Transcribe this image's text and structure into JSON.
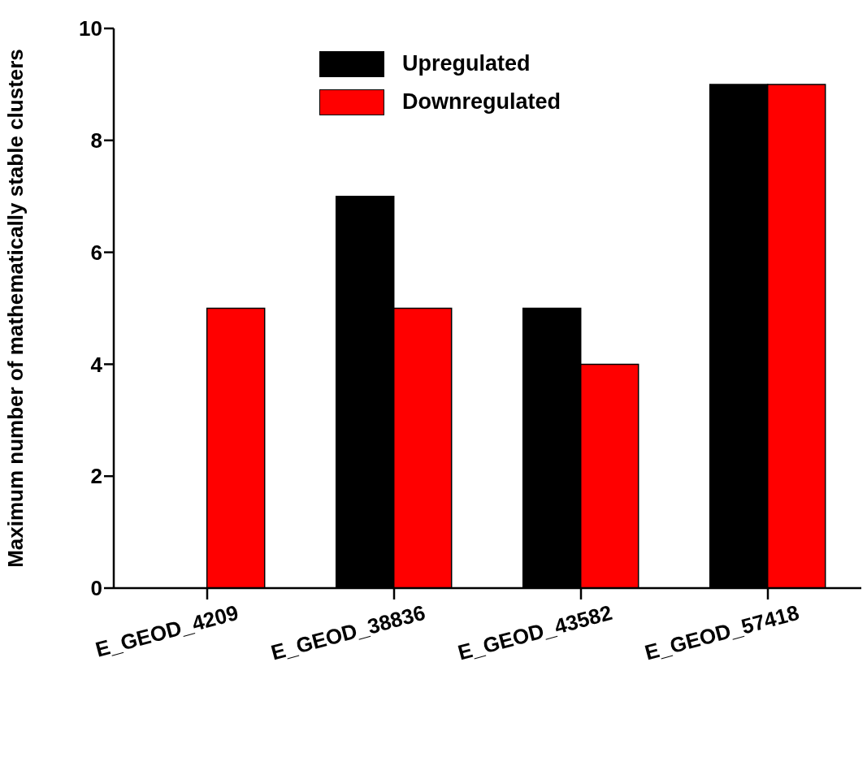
{
  "chart_data": {
    "type": "bar",
    "ylabel": "Maximum number of mathematically stable clusters",
    "categories": [
      "E_GEOD_4209",
      "E_GEOD_38836",
      "E_GEOD_43582",
      "E_GEOD_57418"
    ],
    "series": [
      {
        "name": "Upregulated",
        "color": "#000000",
        "values": [
          0,
          7,
          5,
          9
        ]
      },
      {
        "name": "Downregulated",
        "color": "#ff0000",
        "values": [
          5,
          5,
          4,
          9
        ]
      }
    ],
    "ylim": [
      0,
      10
    ],
    "yticks": [
      0,
      2,
      4,
      6,
      8,
      10
    ],
    "grid": false,
    "legend": "top"
  }
}
